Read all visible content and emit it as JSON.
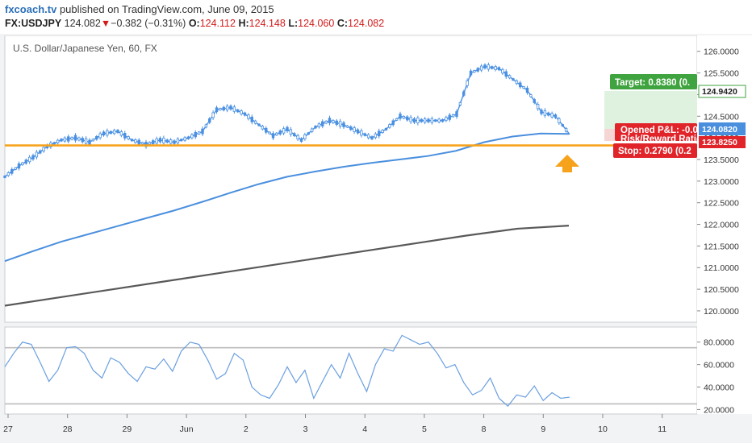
{
  "header": {
    "site": "fxcoach.tv",
    "published": "published on TradingView.com, June 09, 2015",
    "symbol": "FX:USDJPY",
    "last": "124.082",
    "arrow": "▼",
    "change": "−0.382 (−0.31%)",
    "o_label": "O:",
    "o_value": "124.112",
    "h_label": "H:",
    "h_value": "124.148",
    "l_label": "L:",
    "l_value": "124.060",
    "c_label": "C:",
    "c_value": "124.082"
  },
  "pane_title": "U.S. Dollar/Japanese Yen, 60, FX",
  "position_tool": {
    "target_label": "Target: 0.8380 (0.",
    "opened_label": "Opened P&L: -0.0",
    "rr_label": "Risk/Reward Ratio",
    "stop_label": "Stop: 0.2790 (0.2",
    "target_price": "124.9420",
    "current_price": "124.0820",
    "stop_price": "123.8250"
  },
  "colors": {
    "up_candle": "#4a90e2",
    "ma_fast": "#4a8fde",
    "ma_slow": "#595959",
    "support": "#f7a21b",
    "arrow": "#f7a21b",
    "target_box": "#3fa33f",
    "stop_box": "#e0242a",
    "profit_zone": "#dff2df",
    "loss_zone": "#f6d5d5",
    "rsi_line": "#6b9fe0"
  },
  "chart_data": [
    {
      "type": "line",
      "title": "U.S. Dollar/Japanese Yen, 60, FX",
      "x_ticks": [
        "27",
        "28",
        "29",
        "Jun",
        "2",
        "3",
        "4",
        "5",
        "8",
        "9",
        "10",
        "11"
      ],
      "y_ticks": [
        "126.0000",
        "125.5000",
        "125.0000",
        "124.5000",
        "124.0000",
        "123.5000",
        "123.0000",
        "122.5000",
        "122.0000",
        "121.5000",
        "121.0000",
        "120.5000",
        "120.0000"
      ],
      "ylim": [
        119.85,
        126.2
      ],
      "support_level": 123.825,
      "series": [
        {
          "values": [
            123.1,
            123.35,
            123.55,
            123.8,
            123.95,
            124.0,
            123.9,
            124.1,
            124.15,
            123.95,
            123.85,
            123.95,
            123.9,
            124.0,
            124.15,
            124.65,
            124.7,
            124.55,
            124.3,
            124.05,
            124.2,
            123.95,
            124.25,
            124.4,
            124.3,
            124.15,
            124.0,
            124.2,
            124.5,
            124.4,
            124.4,
            124.4,
            124.55,
            125.5,
            125.65,
            125.6,
            125.35,
            125.1,
            124.6,
            124.5,
            124.08
          ]
        },
        {
          "values": [
            121.15,
            121.38,
            121.6,
            121.78,
            121.96,
            122.14,
            122.32,
            122.52,
            122.73,
            122.93,
            123.1,
            123.22,
            123.33,
            123.42,
            123.5,
            123.58,
            123.7,
            123.9,
            124.03,
            124.1,
            124.09
          ]
        },
        {
          "values": [
            120.12,
            120.3,
            120.48,
            120.66,
            120.84,
            121.02,
            121.2,
            121.38,
            121.56,
            121.74,
            121.9,
            121.97
          ]
        }
      ]
    },
    {
      "type": "line",
      "y_ticks": [
        "80.0000",
        "60.0000",
        "40.0000",
        "20.0000"
      ],
      "ylim": [
        16,
        92
      ],
      "levels": [
        75,
        25
      ],
      "series": [
        {
          "values": [
            58,
            70,
            80,
            78,
            62,
            45,
            55,
            75,
            76,
            70,
            55,
            48,
            66,
            62,
            52,
            45,
            58,
            56,
            65,
            54,
            72,
            80,
            78,
            64,
            47,
            52,
            70,
            64,
            40,
            33,
            30,
            42,
            58,
            44,
            55,
            30,
            45,
            60,
            48,
            70,
            52,
            36,
            60,
            74,
            72,
            86,
            82,
            78,
            80,
            70,
            57,
            60,
            44,
            33,
            37,
            48,
            30,
            23,
            33,
            31,
            41,
            28,
            35,
            30,
            31
          ]
        }
      ]
    }
  ]
}
